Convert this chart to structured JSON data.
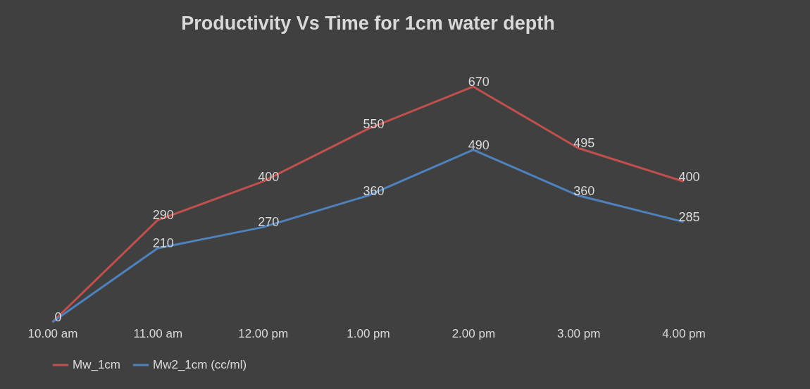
{
  "chart_data": {
    "type": "line",
    "title": "Productivity Vs Time for 1cm water depth",
    "categories": [
      "10.00 am",
      "11.00 am",
      "12.00 pm",
      "1.00 pm",
      "2.00 pm",
      "3.00 pm",
      "4.00 pm"
    ],
    "series": [
      {
        "name": "Mw_1cm",
        "color": "#c0504d",
        "values": [
          0,
          290,
          400,
          550,
          670,
          495,
          400
        ],
        "value_labels": [
          "0",
          "290",
          "400",
          "550",
          "670",
          "495",
          "400"
        ]
      },
      {
        "name": "Mw2_1cm (cc/ml)",
        "color": "#4f81bd",
        "values": [
          0,
          210,
          270,
          360,
          490,
          360,
          285
        ],
        "value_labels": [
          null,
          "210",
          "270",
          "360",
          "490",
          "360",
          "285"
        ]
      }
    ],
    "legend": "bottom",
    "grid": false,
    "marker": "none",
    "line_style": "solid"
  }
}
